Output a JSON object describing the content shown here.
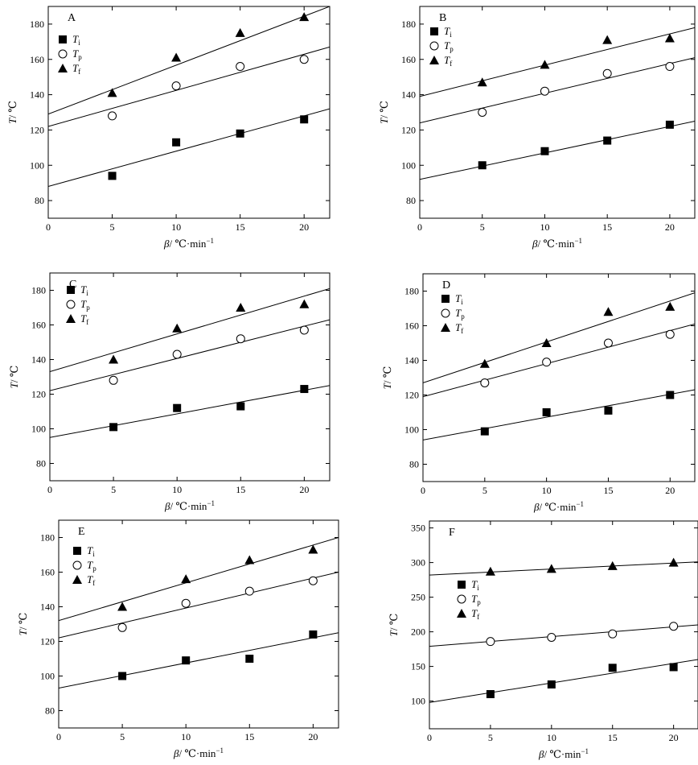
{
  "chart_data": [
    {
      "type": "scatter",
      "title": "A",
      "xlabel": "β/ ℃·min⁻¹",
      "xlabel_parts": [
        "β",
        "/ ℃·min",
        "−1"
      ],
      "ylabel": "T/ ℃",
      "ylabel_parts": [
        "T",
        "/ ℃"
      ],
      "xlim": [
        0,
        22
      ],
      "ylim": [
        70,
        190
      ],
      "xticks": [
        0,
        5,
        10,
        15,
        20
      ],
      "yticks": [
        80,
        100,
        120,
        140,
        160,
        180
      ],
      "legend_position": "top-left",
      "series": [
        {
          "name": "Ti",
          "symbol": "T",
          "subscript": "i",
          "marker": "square",
          "x": [
            5,
            10,
            15,
            20
          ],
          "y": [
            94,
            113,
            118,
            126
          ],
          "fit": [
            88,
            132
          ]
        },
        {
          "name": "Tp",
          "symbol": "T",
          "subscript": "p",
          "marker": "circle",
          "x": [
            5,
            10,
            15,
            20
          ],
          "y": [
            128,
            145,
            156,
            160
          ],
          "fit": [
            122,
            167
          ]
        },
        {
          "name": "Tf",
          "symbol": "T",
          "subscript": "f",
          "marker": "triangle",
          "x": [
            5,
            10,
            15,
            20
          ],
          "y": [
            141,
            161,
            175,
            184
          ],
          "fit": [
            129,
            190
          ]
        }
      ]
    },
    {
      "type": "scatter",
      "title": "B",
      "xlabel": "β/ ℃·min⁻¹",
      "xlabel_parts": [
        "β",
        "/ ℃·min",
        "−1"
      ],
      "ylabel": "T/ ℃",
      "ylabel_parts": [
        "T",
        "/ ℃"
      ],
      "xlim": [
        0,
        22
      ],
      "ylim": [
        70,
        190
      ],
      "xticks": [
        0,
        5,
        10,
        15,
        20
      ],
      "yticks": [
        80,
        100,
        120,
        140,
        160,
        180
      ],
      "legend_position": "top-left",
      "series": [
        {
          "name": "Ti",
          "symbol": "T",
          "subscript": "i",
          "marker": "square",
          "x": [
            5,
            10,
            15,
            20
          ],
          "y": [
            100,
            108,
            114,
            123
          ],
          "fit": [
            92,
            125
          ]
        },
        {
          "name": "Tp",
          "symbol": "T",
          "subscript": "p",
          "marker": "circle",
          "x": [
            5,
            10,
            15,
            20
          ],
          "y": [
            130,
            142,
            152,
            156
          ],
          "fit": [
            124,
            161
          ]
        },
        {
          "name": "Tf",
          "symbol": "T",
          "subscript": "f",
          "marker": "triangle",
          "x": [
            5,
            10,
            15,
            20
          ],
          "y": [
            147,
            157,
            171,
            172
          ],
          "fit": [
            139,
            178
          ]
        }
      ]
    },
    {
      "type": "scatter",
      "title": "C",
      "xlabel": "β/ ℃·min⁻¹",
      "xlabel_parts": [
        "β",
        "/ ℃·min",
        "−1"
      ],
      "ylabel": "T/ ℃",
      "ylabel_parts": [
        "T",
        "/ ℃"
      ],
      "xlim": [
        0,
        22
      ],
      "ylim": [
        70,
        190
      ],
      "xticks": [
        0,
        5,
        10,
        15,
        20
      ],
      "yticks": [
        80,
        100,
        120,
        140,
        160,
        180
      ],
      "legend_position": "top-left",
      "series": [
        {
          "name": "Ti",
          "symbol": "T",
          "subscript": "i",
          "marker": "square",
          "x": [
            5,
            10,
            15,
            20
          ],
          "y": [
            101,
            112,
            113,
            123
          ],
          "fit": [
            95,
            125
          ]
        },
        {
          "name": "Tp",
          "symbol": "T",
          "subscript": "p",
          "marker": "circle",
          "x": [
            5,
            10,
            15,
            20
          ],
          "y": [
            128,
            143,
            152,
            157
          ],
          "fit": [
            122,
            163
          ]
        },
        {
          "name": "Tf",
          "symbol": "T",
          "subscript": "f",
          "marker": "triangle",
          "x": [
            5,
            10,
            15,
            20
          ],
          "y": [
            140,
            158,
            170,
            172
          ],
          "fit": [
            133,
            181
          ]
        }
      ]
    },
    {
      "type": "scatter",
      "title": "D",
      "xlabel": "β/ ℃·min⁻¹",
      "xlabel_parts": [
        "β",
        "/ ℃·min",
        "−1"
      ],
      "ylabel": "T/ ℃",
      "ylabel_parts": [
        "T",
        "/ ℃"
      ],
      "xlim": [
        0,
        22
      ],
      "ylim": [
        70,
        190
      ],
      "xticks": [
        0,
        5,
        10,
        15,
        20
      ],
      "yticks": [
        80,
        100,
        120,
        140,
        160,
        180
      ],
      "legend_position": "top-left",
      "series": [
        {
          "name": "Ti",
          "symbol": "T",
          "subscript": "i",
          "marker": "square",
          "x": [
            5,
            10,
            15,
            20
          ],
          "y": [
            99,
            110,
            111,
            120
          ],
          "fit": [
            94,
            123
          ]
        },
        {
          "name": "Tp",
          "symbol": "T",
          "subscript": "p",
          "marker": "circle",
          "x": [
            5,
            10,
            15,
            20
          ],
          "y": [
            127,
            139,
            150,
            155
          ],
          "fit": [
            119,
            161
          ]
        },
        {
          "name": "Tf",
          "symbol": "T",
          "subscript": "f",
          "marker": "triangle",
          "x": [
            5,
            10,
            15,
            20
          ],
          "y": [
            138,
            150,
            168,
            171
          ],
          "fit": [
            127,
            179
          ]
        }
      ]
    },
    {
      "type": "scatter",
      "title": "E",
      "xlabel": "β/ ℃·min⁻¹",
      "xlabel_parts": [
        "β",
        "/ ℃·min",
        "−1"
      ],
      "ylabel": "T/ ℃",
      "ylabel_parts": [
        "T",
        "/ ℃"
      ],
      "xlim": [
        0,
        22
      ],
      "ylim": [
        70,
        190
      ],
      "xticks": [
        0,
        5,
        10,
        15,
        20
      ],
      "yticks": [
        80,
        100,
        120,
        140,
        160,
        180
      ],
      "legend_position": "top-left",
      "series": [
        {
          "name": "Ti",
          "symbol": "T",
          "subscript": "i",
          "marker": "square",
          "x": [
            5,
            10,
            15,
            20
          ],
          "y": [
            100,
            109,
            110,
            124
          ],
          "fit": [
            93,
            125
          ]
        },
        {
          "name": "Tp",
          "symbol": "T",
          "subscript": "p",
          "marker": "circle",
          "x": [
            5,
            10,
            15,
            20
          ],
          "y": [
            128,
            142,
            149,
            155
          ],
          "fit": [
            122,
            160
          ]
        },
        {
          "name": "Tf",
          "symbol": "T",
          "subscript": "f",
          "marker": "triangle",
          "x": [
            5,
            10,
            15,
            20
          ],
          "y": [
            140,
            156,
            167,
            173
          ],
          "fit": [
            132,
            180
          ]
        }
      ]
    },
    {
      "type": "scatter",
      "title": "F",
      "xlabel": "β/ ℃·min⁻¹",
      "xlabel_parts": [
        "β",
        "/ ℃·min",
        "−1"
      ],
      "ylabel": "T/ ℃",
      "ylabel_parts": [
        "T",
        "/ ℃"
      ],
      "xlim": [
        0,
        22
      ],
      "ylim": [
        60,
        360
      ],
      "xticks": [
        0,
        5,
        10,
        15,
        20
      ],
      "yticks": [
        100,
        150,
        200,
        250,
        300,
        350
      ],
      "legend_position": "middle-left",
      "series": [
        {
          "name": "Ti",
          "symbol": "T",
          "subscript": "i",
          "marker": "square",
          "x": [
            5,
            10,
            15,
            20
          ],
          "y": [
            110,
            124,
            148,
            149
          ],
          "fit": [
            98,
            160
          ]
        },
        {
          "name": "Tp",
          "symbol": "T",
          "subscript": "p",
          "marker": "circle",
          "x": [
            5,
            10,
            15,
            20
          ],
          "y": [
            186,
            192,
            197,
            208
          ],
          "fit": [
            179,
            210
          ]
        },
        {
          "name": "Tf",
          "symbol": "T",
          "subscript": "f",
          "marker": "triangle",
          "x": [
            5,
            10,
            15,
            20
          ],
          "y": [
            287,
            291,
            295,
            300
          ],
          "fit": [
            282,
            301
          ]
        }
      ]
    }
  ]
}
